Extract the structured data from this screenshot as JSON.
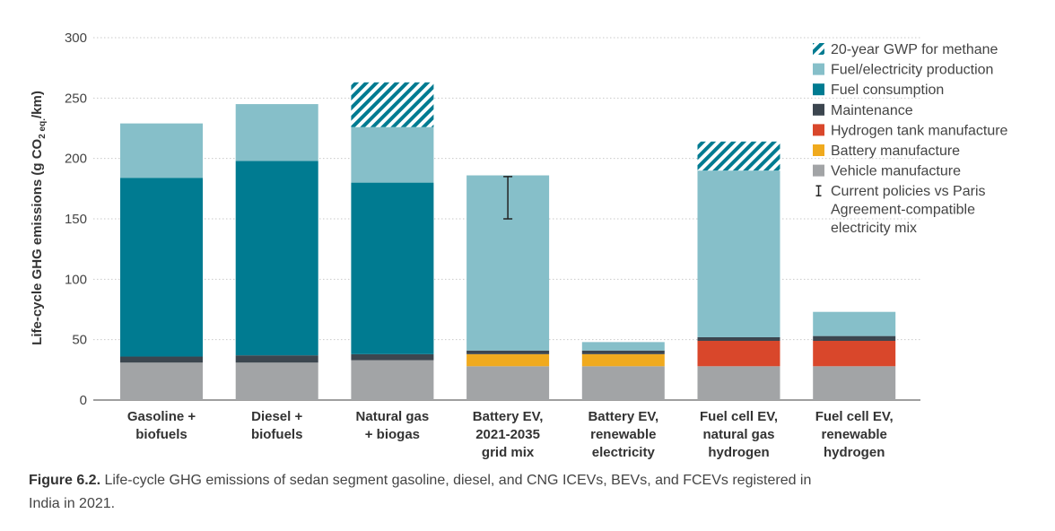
{
  "chart_data": {
    "type": "bar",
    "stacked": true,
    "ylabel_main": "Life-cycle GHG emissions (g CO",
    "ylabel_sub": "2 eq.",
    "ylabel_tail": "/km)",
    "ylim": [
      0,
      300
    ],
    "yticks": [
      0,
      50,
      100,
      150,
      200,
      250,
      300
    ],
    "grid": true,
    "legend_position": "top-right",
    "categories": [
      [
        "Gasoline +",
        "biofuels"
      ],
      [
        "Diesel +",
        "biofuels"
      ],
      [
        "Natural gas",
        "+ biogas"
      ],
      [
        "Battery EV,",
        "2021-2035",
        "grid mix"
      ],
      [
        "Battery EV,",
        "renewable",
        "electricity"
      ],
      [
        "Fuel cell EV,",
        "natural gas",
        "hydrogen"
      ],
      [
        "Fuel cell EV,",
        "renewable",
        "hydrogen"
      ]
    ],
    "series": [
      {
        "name": "Vehicle manufacture",
        "color": "#a2a4a6",
        "values": [
          31,
          31,
          33,
          28,
          28,
          28,
          28
        ]
      },
      {
        "name": "Battery manufacture",
        "color": "#f0aa1e",
        "values": [
          0,
          0,
          0,
          10,
          10,
          0,
          0
        ]
      },
      {
        "name": "Hydrogen tank manufacture",
        "color": "#d9472b",
        "values": [
          0,
          0,
          0,
          0,
          0,
          21,
          21
        ]
      },
      {
        "name": "Maintenance",
        "color": "#3c464f",
        "values": [
          5,
          6,
          5,
          3,
          3,
          3,
          4
        ]
      },
      {
        "name": "Fuel consumption",
        "color": "#007b91",
        "values": [
          148,
          161,
          142,
          0,
          0,
          0,
          0
        ]
      },
      {
        "name": "Fuel/electricity production",
        "color": "#86bfc9",
        "values": [
          45,
          47,
          46,
          145,
          7,
          138,
          20
        ]
      },
      {
        "name": "20-year GWP for methane",
        "color": "#007b91",
        "pattern": "hatch",
        "values": [
          0,
          0,
          37,
          0,
          0,
          24,
          0
        ]
      }
    ],
    "legend_order": [
      "20-year GWP for methane",
      "Fuel/electricity production",
      "Fuel consumption",
      "Maintenance",
      "Hydrogen tank manufacture",
      "Battery manufacture",
      "Vehicle manufacture"
    ],
    "error_bar": {
      "category_index": 3,
      "low": 150,
      "high": 185,
      "legend_lines": [
        "Current policies vs Paris",
        "Agreement-compatible",
        "electricity mix"
      ]
    }
  },
  "caption": {
    "label": "Figure 6.2.",
    "text": " Life-cycle GHG emissions of sedan segment gasoline, diesel, and CNG ICEVs, BEVs, and FCEVs registered in India in 2021."
  }
}
